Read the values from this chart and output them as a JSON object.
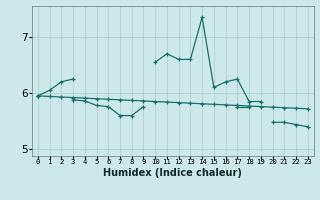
{
  "xlabel": "Humidex (Indice chaleur)",
  "x": [
    0,
    1,
    2,
    3,
    4,
    5,
    6,
    7,
    8,
    9,
    10,
    11,
    12,
    13,
    14,
    15,
    16,
    17,
    18,
    19,
    20,
    21,
    22,
    23
  ],
  "line1": [
    5.95,
    6.05,
    6.2,
    6.25,
    null,
    null,
    null,
    null,
    null,
    null,
    6.55,
    6.7,
    6.6,
    6.6,
    7.35,
    6.1,
    6.2,
    6.25,
    5.85,
    5.85,
    null,
    null,
    null,
    null
  ],
  "line2": [
    5.95,
    5.94,
    5.93,
    5.92,
    5.91,
    5.9,
    5.89,
    5.88,
    5.87,
    5.86,
    5.85,
    5.84,
    5.83,
    5.82,
    5.81,
    5.8,
    5.79,
    5.78,
    5.77,
    5.76,
    5.75,
    5.74,
    5.73,
    5.72
  ],
  "line3": [
    5.95,
    null,
    null,
    5.88,
    5.86,
    5.78,
    5.76,
    5.6,
    5.6,
    5.76,
    null,
    null,
    null,
    null,
    null,
    null,
    null,
    5.76,
    5.76,
    null,
    5.48,
    5.48,
    5.44,
    5.4
  ],
  "ylim": [
    4.88,
    7.55
  ],
  "yticks": [
    5,
    6,
    7
  ],
  "bg_color": "#cce8e8",
  "line_color": "#1a7068",
  "grid_color": "#aacccc"
}
